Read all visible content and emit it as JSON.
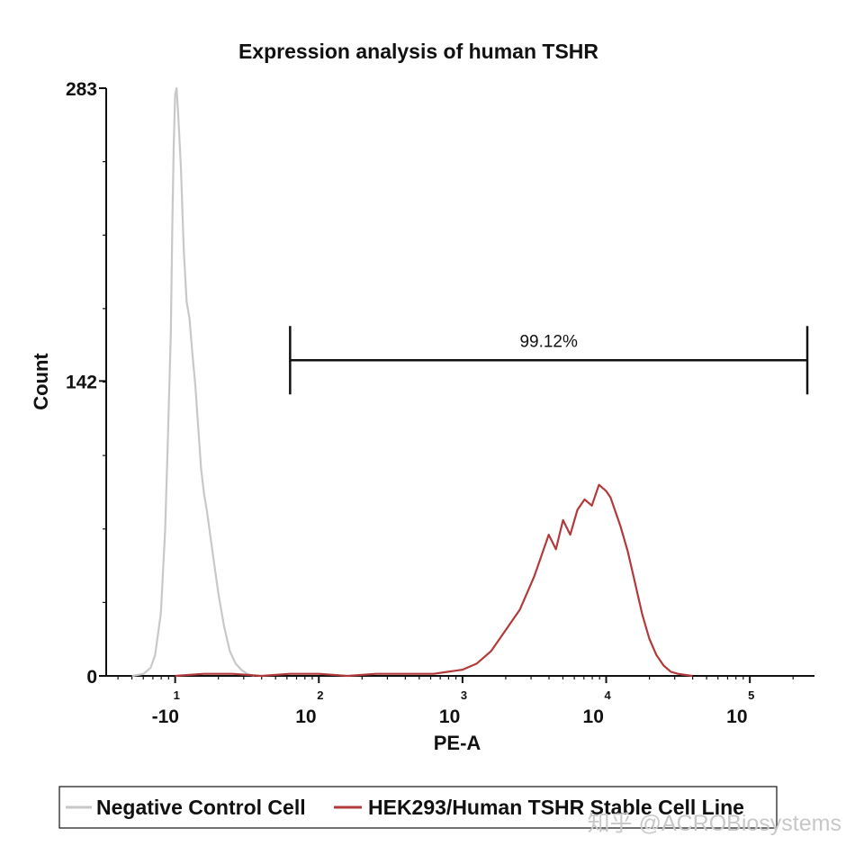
{
  "chart_data": {
    "type": "line",
    "title": "Expression analysis of human TSHR",
    "xlabel": "PE-A",
    "ylabel": "Count",
    "x_scale": "biexponential",
    "xlim_log10": [
      0.52,
      5.45
    ],
    "ylim": [
      0,
      283
    ],
    "yticks": [
      {
        "value": 0,
        "label": "0"
      },
      {
        "value": 142,
        "label": "142"
      },
      {
        "value": 283,
        "label": "283"
      }
    ],
    "xticks": [
      {
        "log": 1.0,
        "base": "-10",
        "exp": "1"
      },
      {
        "log": 2.0,
        "base": "10",
        "exp": "2"
      },
      {
        "log": 3.0,
        "base": "10",
        "exp": "3"
      },
      {
        "log": 4.0,
        "base": "10",
        "exp": "4"
      },
      {
        "log": 5.0,
        "base": "10",
        "exp": "5"
      }
    ],
    "gate": {
      "label": "99.12%",
      "x_start_log": 1.8,
      "x_end_log": 5.4,
      "y": 152
    },
    "series": [
      {
        "name": "Negative Control Cell",
        "color": "#c8c8c8",
        "points": [
          [
            0.7,
            0
          ],
          [
            0.78,
            1
          ],
          [
            0.83,
            4
          ],
          [
            0.86,
            10
          ],
          [
            0.9,
            30
          ],
          [
            0.93,
            70
          ],
          [
            0.95,
            115
          ],
          [
            0.97,
            165
          ],
          [
            0.98,
            215
          ],
          [
            0.99,
            255
          ],
          [
            1.0,
            280
          ],
          [
            1.01,
            283
          ],
          [
            1.02,
            272
          ],
          [
            1.04,
            245
          ],
          [
            1.06,
            205
          ],
          [
            1.08,
            180
          ],
          [
            1.1,
            172
          ],
          [
            1.12,
            155
          ],
          [
            1.14,
            140
          ],
          [
            1.16,
            120
          ],
          [
            1.18,
            100
          ],
          [
            1.2,
            88
          ],
          [
            1.22,
            80
          ],
          [
            1.24,
            70
          ],
          [
            1.27,
            55
          ],
          [
            1.3,
            40
          ],
          [
            1.34,
            24
          ],
          [
            1.38,
            12
          ],
          [
            1.42,
            6
          ],
          [
            1.46,
            3
          ],
          [
            1.5,
            1
          ],
          [
            1.55,
            0
          ]
        ]
      },
      {
        "name": "HEK293/Human TSHR Stable Cell Line",
        "color": "#b23a3a",
        "points": [
          [
            1.0,
            0
          ],
          [
            1.2,
            1
          ],
          [
            1.4,
            1
          ],
          [
            1.6,
            0
          ],
          [
            1.8,
            1
          ],
          [
            2.0,
            1
          ],
          [
            2.2,
            0
          ],
          [
            2.4,
            1
          ],
          [
            2.6,
            1
          ],
          [
            2.8,
            1
          ],
          [
            2.9,
            2
          ],
          [
            3.0,
            3
          ],
          [
            3.1,
            6
          ],
          [
            3.2,
            12
          ],
          [
            3.3,
            22
          ],
          [
            3.4,
            32
          ],
          [
            3.5,
            48
          ],
          [
            3.55,
            58
          ],
          [
            3.6,
            68
          ],
          [
            3.65,
            61
          ],
          [
            3.7,
            75
          ],
          [
            3.75,
            68
          ],
          [
            3.8,
            80
          ],
          [
            3.85,
            85
          ],
          [
            3.9,
            82
          ],
          [
            3.95,
            92
          ],
          [
            4.0,
            89
          ],
          [
            4.03,
            86
          ],
          [
            4.06,
            80
          ],
          [
            4.1,
            72
          ],
          [
            4.15,
            60
          ],
          [
            4.2,
            45
          ],
          [
            4.25,
            30
          ],
          [
            4.3,
            18
          ],
          [
            4.35,
            10
          ],
          [
            4.4,
            5
          ],
          [
            4.45,
            2
          ],
          [
            4.5,
            1
          ],
          [
            4.6,
            0
          ]
        ]
      }
    ],
    "legend": [
      {
        "label": "Negative Control Cell",
        "color": "#c8c8c8"
      },
      {
        "label": "HEK293/Human TSHR Stable Cell Line",
        "color": "#b23a3a"
      }
    ]
  },
  "watermark": "知乎 @ACROBiosystems"
}
